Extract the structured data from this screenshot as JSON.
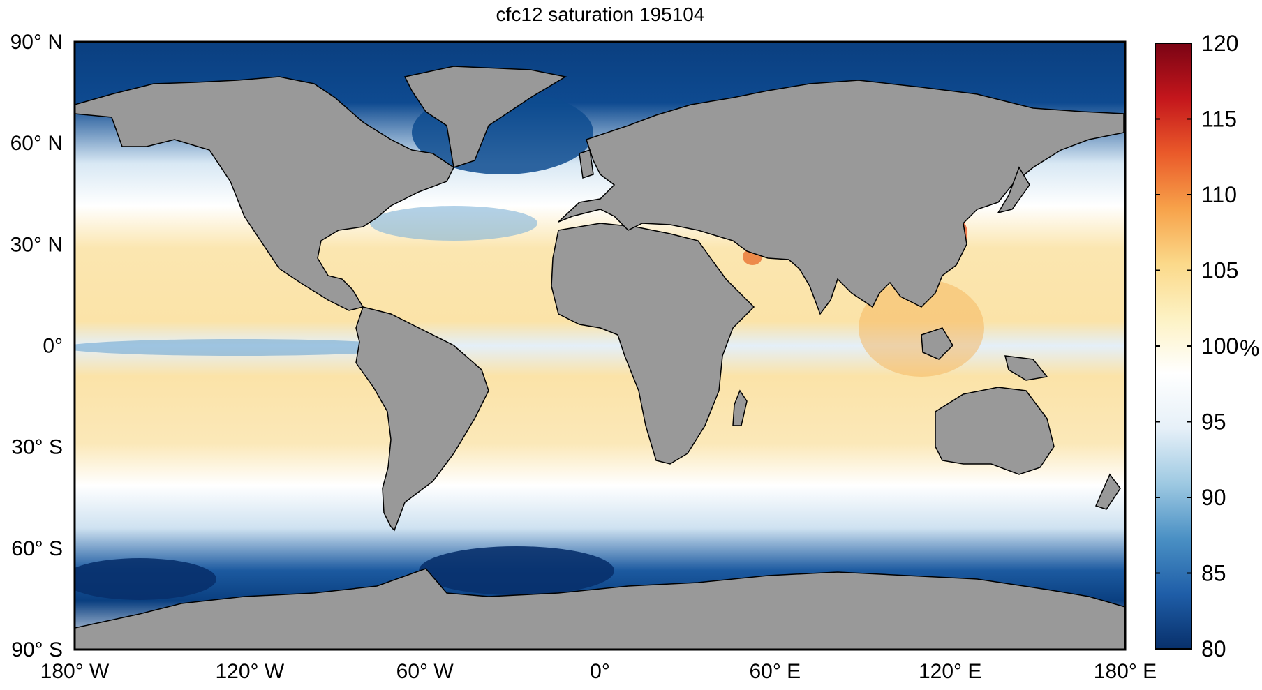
{
  "title": "cfc12 saturation 195104",
  "map": {
    "land_color": "#999999",
    "frame_color": "#000000",
    "lat_labels": [
      "90° N",
      "60° N",
      "30° N",
      "0°",
      "30° S",
      "60° S",
      "90° S"
    ],
    "lat_values": [
      90,
      60,
      30,
      0,
      -30,
      -60,
      -90
    ],
    "lon_labels": [
      "180° W",
      "120° W",
      "60° W",
      "0°",
      "60° E",
      "120° E",
      "180° E"
    ],
    "lon_values": [
      -180,
      -120,
      -60,
      0,
      60,
      120,
      180
    ]
  },
  "colorbar": {
    "unit": "%",
    "min": 80,
    "max": 120,
    "tick_labels": [
      "120",
      "115",
      "110",
      "105",
      "100",
      "95",
      "90",
      "85",
      "80"
    ],
    "tick_values": [
      120,
      115,
      110,
      105,
      100,
      95,
      90,
      85,
      80
    ],
    "colors": [
      "#08306b",
      "#1f5ea8",
      "#4a90c4",
      "#9ec9e2",
      "#e6f0f8",
      "#ffffff",
      "#fdf2c4",
      "#fbd98a",
      "#f7a24a",
      "#ea5a2a",
      "#c4161c",
      "#7a0414"
    ]
  }
}
